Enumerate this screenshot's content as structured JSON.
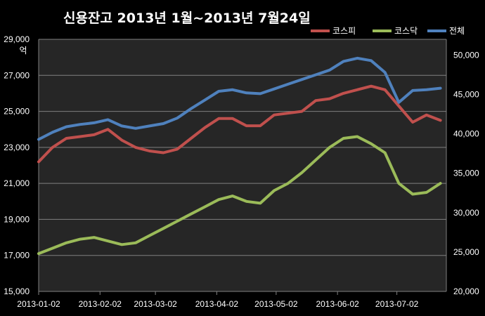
{
  "chart_data": {
    "type": "line",
    "title": "신용잔고 2013년 1월~2013년 7월24일",
    "left_axis_unit": "억",
    "left_axis": {
      "min": 15000,
      "max": 29000,
      "ticks": [
        "15,000",
        "17,000",
        "19,000",
        "21,000",
        "23,000",
        "25,000",
        "27,000",
        "29,000"
      ]
    },
    "right_axis": {
      "min": 20000,
      "max": 52000,
      "ticks": [
        "20,000",
        "25,000",
        "30,000",
        "35,000",
        "40,000",
        "45,000",
        "50,000"
      ]
    },
    "x_ticks": [
      "2013-01-02",
      "2013-02-02",
      "2013-03-02",
      "2013-04-02",
      "2013-05-02",
      "2013-06-02",
      "2013-07-02"
    ],
    "grid": true,
    "legend_position": "top-right",
    "x": [
      "2013-01-02",
      "2013-01-09",
      "2013-01-16",
      "2013-01-23",
      "2013-01-30",
      "2013-02-06",
      "2013-02-13",
      "2013-02-20",
      "2013-02-27",
      "2013-03-06",
      "2013-03-13",
      "2013-03-20",
      "2013-03-27",
      "2013-04-03",
      "2013-04-10",
      "2013-04-17",
      "2013-04-24",
      "2013-05-01",
      "2013-05-08",
      "2013-05-15",
      "2013-05-22",
      "2013-05-29",
      "2013-06-05",
      "2013-06-12",
      "2013-06-19",
      "2013-06-26",
      "2013-07-03",
      "2013-07-10",
      "2013-07-17",
      "2013-07-24"
    ],
    "series": [
      {
        "name": "코스피",
        "axis": "left",
        "color": "#c0504d",
        "values": [
          22200,
          23000,
          23500,
          23600,
          23700,
          24000,
          23400,
          23000,
          22800,
          22700,
          22900,
          23500,
          24100,
          24600,
          24600,
          24200,
          24200,
          24800,
          24900,
          25000,
          25600,
          25700,
          26000,
          26200,
          26400,
          26200,
          25300,
          24400,
          24800,
          24500
        ]
      },
      {
        "name": "코스닥",
        "axis": "left",
        "color": "#9bbb59",
        "values": [
          17100,
          17400,
          17700,
          17900,
          18000,
          17800,
          17600,
          17700,
          18100,
          18500,
          18900,
          19300,
          19700,
          20100,
          20300,
          20000,
          19900,
          20600,
          21000,
          21600,
          22300,
          23000,
          23500,
          23600,
          23200,
          22700,
          21000,
          20400,
          20500,
          21000
        ]
      },
      {
        "name": "전체",
        "axis": "right",
        "color": "#4f81bd",
        "values": [
          39300,
          40200,
          40900,
          41200,
          41400,
          41800,
          41000,
          40700,
          41000,
          41300,
          42000,
          43200,
          44300,
          45400,
          45600,
          45200,
          45100,
          45700,
          46300,
          46900,
          47500,
          48100,
          49200,
          49600,
          49300,
          47800,
          44000,
          45500,
          45600,
          45800
        ]
      }
    ]
  }
}
